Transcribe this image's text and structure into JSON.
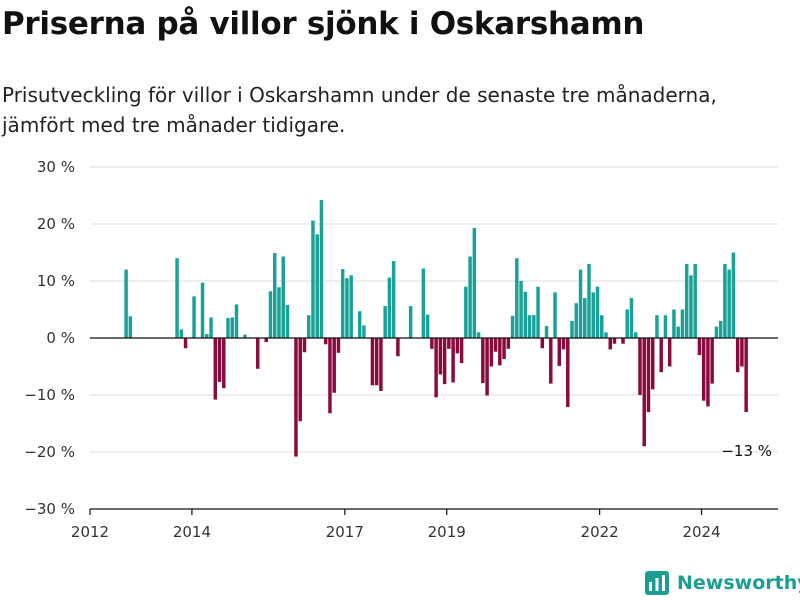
{
  "title": "Priserna på villor sjönk i Oskarshamn",
  "subtitle": "Prisutveckling för villor i Oskarshamn under de senaste tre månaderna, jämfört med tre månader tidigare.",
  "brand": {
    "name": "Newsworthy",
    "icon": "newsworthy-logo-icon"
  },
  "colors": {
    "positive": "#1aa198",
    "negative": "#8b0a3e",
    "grid": "#dddddd",
    "zero": "#111111"
  },
  "chart_data": {
    "type": "bar",
    "title": "Priserna på villor sjönk i Oskarshamn",
    "subtitle": "Prisutveckling för villor i Oskarshamn under de senaste tre månaderna, jämfört med tre månader tidigare.",
    "xlabel": "",
    "ylabel": "",
    "xlim": [
      "2012-01",
      "2025-07"
    ],
    "ylim": [
      -30,
      30
    ],
    "y_ticks": [
      30,
      20,
      10,
      0,
      -10,
      -20,
      -30
    ],
    "y_tick_labels": [
      "30 %",
      "20 %",
      "10 %",
      "0 %",
      "−10 %",
      "−20 %",
      "−30 %"
    ],
    "x_ticks": [
      "2012-01",
      "2014-01",
      "2017-01",
      "2019-01",
      "2022-01",
      "2024-01"
    ],
    "x_tick_labels": [
      "2012",
      "2014",
      "2017",
      "2019",
      "2022",
      "2024"
    ],
    "grid": true,
    "series": [
      {
        "values": [
          {
            "x": "2012-09",
            "y": 12.0
          },
          {
            "x": "2012-10",
            "y": 3.8
          },
          {
            "x": "2013-09",
            "y": 14.0
          },
          {
            "x": "2013-10",
            "y": 1.5
          },
          {
            "x": "2013-11",
            "y": -1.8
          },
          {
            "x": "2014-01",
            "y": 7.3
          },
          {
            "x": "2014-03",
            "y": 9.7
          },
          {
            "x": "2014-04",
            "y": 0.7
          },
          {
            "x": "2014-05",
            "y": 3.6
          },
          {
            "x": "2014-06",
            "y": -10.8
          },
          {
            "x": "2014-07",
            "y": -7.7
          },
          {
            "x": "2014-08",
            "y": -8.8
          },
          {
            "x": "2014-09",
            "y": 3.5
          },
          {
            "x": "2014-10",
            "y": 3.6
          },
          {
            "x": "2014-11",
            "y": 5.9
          },
          {
            "x": "2015-01",
            "y": 0.6
          },
          {
            "x": "2015-04",
            "y": -5.4
          },
          {
            "x": "2015-06",
            "y": -0.7
          },
          {
            "x": "2015-07",
            "y": 8.2
          },
          {
            "x": "2015-08",
            "y": 14.9
          },
          {
            "x": "2015-09",
            "y": 8.9
          },
          {
            "x": "2015-10",
            "y": 14.3
          },
          {
            "x": "2015-11",
            "y": 5.8
          },
          {
            "x": "2016-01",
            "y": -20.8
          },
          {
            "x": "2016-02",
            "y": -14.6
          },
          {
            "x": "2016-03",
            "y": -2.5
          },
          {
            "x": "2016-04",
            "y": 4.0
          },
          {
            "x": "2016-05",
            "y": 20.6
          },
          {
            "x": "2016-06",
            "y": 18.2
          },
          {
            "x": "2016-07",
            "y": 24.2
          },
          {
            "x": "2016-08",
            "y": -1.1
          },
          {
            "x": "2016-09",
            "y": -13.2
          },
          {
            "x": "2016-10",
            "y": -9.6
          },
          {
            "x": "2016-11",
            "y": -2.6
          },
          {
            "x": "2016-12",
            "y": 12.1
          },
          {
            "x": "2017-01",
            "y": 10.5
          },
          {
            "x": "2017-02",
            "y": 11.0
          },
          {
            "x": "2017-04",
            "y": 4.7
          },
          {
            "x": "2017-05",
            "y": 2.2
          },
          {
            "x": "2017-07",
            "y": -8.3
          },
          {
            "x": "2017-08",
            "y": -8.3
          },
          {
            "x": "2017-09",
            "y": -9.3
          },
          {
            "x": "2017-10",
            "y": 5.6
          },
          {
            "x": "2017-11",
            "y": 10.6
          },
          {
            "x": "2017-12",
            "y": 13.5
          },
          {
            "x": "2018-01",
            "y": -3.2
          },
          {
            "x": "2018-04",
            "y": 5.6
          },
          {
            "x": "2018-07",
            "y": 12.2
          },
          {
            "x": "2018-08",
            "y": 4.1
          },
          {
            "x": "2018-09",
            "y": -1.9
          },
          {
            "x": "2018-10",
            "y": -10.4
          },
          {
            "x": "2018-11",
            "y": -6.4
          },
          {
            "x": "2018-12",
            "y": -8.1
          },
          {
            "x": "2019-01",
            "y": -1.9
          },
          {
            "x": "2019-02",
            "y": -7.8
          },
          {
            "x": "2019-03",
            "y": -2.7
          },
          {
            "x": "2019-04",
            "y": -4.4
          },
          {
            "x": "2019-05",
            "y": 9.0
          },
          {
            "x": "2019-06",
            "y": 14.3
          },
          {
            "x": "2019-07",
            "y": 19.3
          },
          {
            "x": "2019-08",
            "y": 1.0
          },
          {
            "x": "2019-09",
            "y": -7.9
          },
          {
            "x": "2019-10",
            "y": -10.1
          },
          {
            "x": "2019-11",
            "y": -5.0
          },
          {
            "x": "2019-12",
            "y": -2.4
          },
          {
            "x": "2020-01",
            "y": -4.8
          },
          {
            "x": "2020-02",
            "y": -3.7
          },
          {
            "x": "2020-03",
            "y": -1.9
          },
          {
            "x": "2020-04",
            "y": 3.9
          },
          {
            "x": "2020-05",
            "y": 14.0
          },
          {
            "x": "2020-06",
            "y": 10.0
          },
          {
            "x": "2020-07",
            "y": 8.1
          },
          {
            "x": "2020-08",
            "y": 4.0
          },
          {
            "x": "2020-09",
            "y": 4.0
          },
          {
            "x": "2020-10",
            "y": 9.0
          },
          {
            "x": "2020-11",
            "y": -1.8
          },
          {
            "x": "2020-12",
            "y": 2.1
          },
          {
            "x": "2021-01",
            "y": -8.0
          },
          {
            "x": "2021-02",
            "y": 8.0
          },
          {
            "x": "2021-03",
            "y": -4.9
          },
          {
            "x": "2021-04",
            "y": -2.0
          },
          {
            "x": "2021-05",
            "y": -12.1
          },
          {
            "x": "2021-06",
            "y": 3.0
          },
          {
            "x": "2021-07",
            "y": 6.1
          },
          {
            "x": "2021-08",
            "y": 12.0
          },
          {
            "x": "2021-09",
            "y": 7.0
          },
          {
            "x": "2021-10",
            "y": 13.0
          },
          {
            "x": "2021-11",
            "y": 8.0
          },
          {
            "x": "2021-12",
            "y": 9.0
          },
          {
            "x": "2022-01",
            "y": 4.0
          },
          {
            "x": "2022-02",
            "y": 1.0
          },
          {
            "x": "2022-03",
            "y": -2.0
          },
          {
            "x": "2022-04",
            "y": -1.0
          },
          {
            "x": "2022-06",
            "y": -1.0
          },
          {
            "x": "2022-07",
            "y": 5.0
          },
          {
            "x": "2022-08",
            "y": 7.0
          },
          {
            "x": "2022-09",
            "y": 1.0
          },
          {
            "x": "2022-10",
            "y": -10.0
          },
          {
            "x": "2022-11",
            "y": -19.0
          },
          {
            "x": "2022-12",
            "y": -13.0
          },
          {
            "x": "2023-01",
            "y": -9.0
          },
          {
            "x": "2023-02",
            "y": 4.0
          },
          {
            "x": "2023-03",
            "y": -6.0
          },
          {
            "x": "2023-04",
            "y": 4.0
          },
          {
            "x": "2023-05",
            "y": -5.0
          },
          {
            "x": "2023-06",
            "y": 5.0
          },
          {
            "x": "2023-07",
            "y": 2.0
          },
          {
            "x": "2023-08",
            "y": 5.0
          },
          {
            "x": "2023-09",
            "y": 13.0
          },
          {
            "x": "2023-10",
            "y": 11.0
          },
          {
            "x": "2023-11",
            "y": 13.0
          },
          {
            "x": "2023-12",
            "y": -3.0
          },
          {
            "x": "2024-01",
            "y": -11.0
          },
          {
            "x": "2024-02",
            "y": -12.0
          },
          {
            "x": "2024-03",
            "y": -8.0
          },
          {
            "x": "2024-04",
            "y": 2.0
          },
          {
            "x": "2024-05",
            "y": 3.0
          },
          {
            "x": "2024-06",
            "y": 13.0
          },
          {
            "x": "2024-07",
            "y": 12.0
          },
          {
            "x": "2024-08",
            "y": 15.0
          },
          {
            "x": "2024-09",
            "y": -6.0
          },
          {
            "x": "2024-10",
            "y": -5.0
          },
          {
            "x": "2024-11",
            "y": -13.0
          }
        ]
      }
    ],
    "annotations": [
      {
        "x": "2024-11",
        "y": -13.0,
        "text": "−13 %"
      }
    ]
  }
}
